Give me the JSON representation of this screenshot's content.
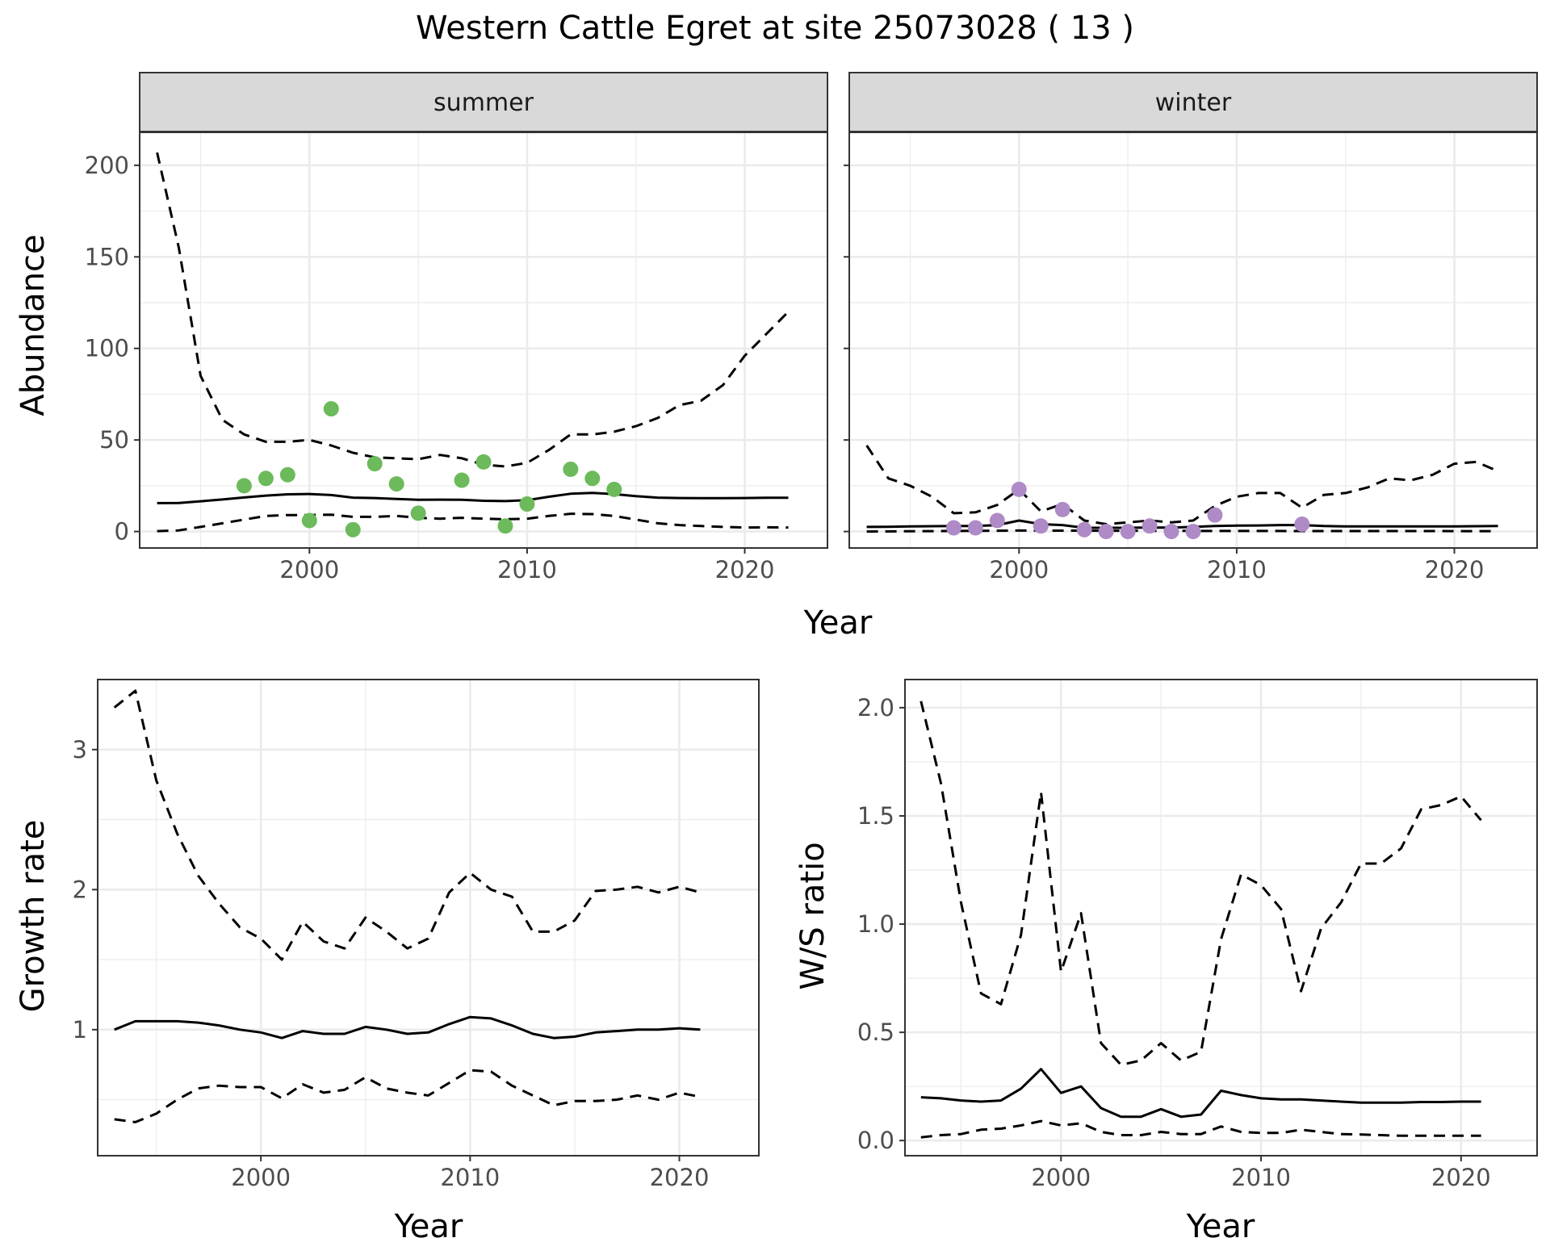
{
  "chart_data": [
    {
      "type": "line",
      "panel": "summer",
      "title": "Western Cattle Egret at site 25073028 ( 13 )",
      "xlabel": "Year",
      "ylabel": "Abundance",
      "strip_label": "summer",
      "xlim": [
        1992.2,
        2023.8
      ],
      "ylim": [
        -9,
        218
      ],
      "xticks": [
        2000,
        2010,
        2020
      ],
      "yticks": [
        0,
        50,
        100,
        150,
        200
      ],
      "grid": true,
      "series": [
        {
          "style": "solid",
          "x": [
            1993,
            1994,
            1995,
            1996,
            1997,
            1998,
            1999,
            2000,
            2001,
            2002,
            2003,
            2004,
            2005,
            2006,
            2007,
            2008,
            2009,
            2010,
            2011,
            2012,
            2013,
            2014,
            2015,
            2016,
            2017,
            2018,
            2019,
            2020,
            2021,
            2022
          ],
          "y": [
            15.5,
            15.6,
            16.5,
            17.5,
            18.6,
            19.6,
            20.3,
            20.5,
            19.9,
            18.5,
            18.3,
            17.8,
            17.3,
            17.4,
            17.3,
            16.8,
            16.6,
            17.1,
            19.0,
            20.6,
            21.1,
            20.4,
            19.3,
            18.5,
            18.3,
            18.2,
            18.2,
            18.3,
            18.4,
            18.4
          ]
        },
        {
          "style": "dashed",
          "x": [
            1993,
            1994,
            1995,
            1996,
            1997,
            1998,
            1999,
            2000,
            2001,
            2002,
            2003,
            2004,
            2005,
            2006,
            2007,
            2008,
            2009,
            2010,
            2011,
            2012,
            2013,
            2014,
            2015,
            2016,
            2017,
            2018,
            2019,
            2020,
            2021,
            2022
          ],
          "y": [
            207,
            155,
            85,
            61,
            53,
            49,
            49,
            50,
            47,
            43,
            40.5,
            40,
            39.5,
            41.8,
            40,
            36.5,
            35.5,
            37.5,
            44.5,
            53,
            53,
            54.5,
            57.5,
            62,
            69,
            71.5,
            80,
            96,
            108,
            120
          ]
        },
        {
          "style": "dashed",
          "x": [
            1993,
            1994,
            1995,
            1996,
            1997,
            1998,
            1999,
            2000,
            2001,
            2002,
            2003,
            2004,
            2005,
            2006,
            2007,
            2008,
            2009,
            2010,
            2011,
            2012,
            2013,
            2014,
            2015,
            2016,
            2017,
            2018,
            2019,
            2020,
            2021,
            2022
          ],
          "y": [
            0.2,
            0.6,
            2.5,
            4.5,
            6.5,
            8.5,
            9,
            9,
            9.2,
            8,
            8,
            8.5,
            7.5,
            7,
            7.5,
            7,
            6.7,
            7,
            8.5,
            9.7,
            9.5,
            8.5,
            6.5,
            4.5,
            3.5,
            3,
            2.5,
            2.2,
            2.3,
            2.2
          ]
        }
      ],
      "points": {
        "color": "#6cba5b",
        "x": [
          1997,
          1998,
          1999,
          2000,
          2001,
          2002,
          2003,
          2004,
          2005,
          2007,
          2008,
          2009,
          2010,
          2012,
          2013,
          2014
        ],
        "y": [
          25,
          29,
          31,
          6,
          67,
          1,
          37,
          26,
          10,
          28,
          38,
          3,
          15,
          34,
          29,
          23
        ]
      }
    },
    {
      "type": "line",
      "panel": "winter",
      "strip_label": "winter",
      "xlabel": "Year",
      "ylabel": "Abundance",
      "xlim": [
        1992.2,
        2023.8
      ],
      "ylim": [
        -9,
        218
      ],
      "xticks": [
        2000,
        2010,
        2020
      ],
      "yticks": [
        0,
        50,
        100,
        150,
        200
      ],
      "grid": true,
      "series": [
        {
          "style": "solid",
          "x": [
            1993,
            1994,
            1995,
            1996,
            1997,
            1998,
            1999,
            2000,
            2001,
            2002,
            2003,
            2004,
            2005,
            2006,
            2007,
            2008,
            2009,
            2010,
            2011,
            2012,
            2013,
            2014,
            2015,
            2016,
            2017,
            2018,
            2019,
            2020,
            2021,
            2022
          ],
          "y": [
            2.5,
            2.6,
            2.8,
            2.9,
            3,
            3,
            3.5,
            6,
            4,
            3.5,
            2,
            2,
            2,
            2.2,
            2.1,
            2.5,
            3,
            3.2,
            3.3,
            3.5,
            3.5,
            3,
            2.8,
            2.8,
            2.8,
            2.8,
            2.8,
            2.8,
            2.9,
            3
          ]
        },
        {
          "style": "dashed",
          "x": [
            1993,
            1994,
            1995,
            1996,
            1997,
            1998,
            1999,
            2000,
            2001,
            2002,
            2003,
            2004,
            2005,
            2006,
            2007,
            2008,
            2009,
            2010,
            2011,
            2012,
            2013,
            2014,
            2015,
            2016,
            2017,
            2018,
            2019,
            2020,
            2021,
            2022
          ],
          "y": [
            47,
            29,
            25,
            19,
            10,
            10.5,
            14.5,
            23,
            11,
            15,
            6,
            4,
            5,
            6,
            5,
            6,
            14,
            19,
            21,
            21,
            13,
            20,
            21,
            24,
            29,
            28,
            31,
            37,
            38,
            33
          ]
        },
        {
          "style": "dashed",
          "x": [
            1993,
            2000,
            2010,
            2022
          ],
          "y": [
            0,
            0.5,
            0.3,
            0.2
          ]
        }
      ],
      "points": {
        "color": "#ae8ac6",
        "x": [
          1997,
          1998,
          1999,
          2000,
          2001,
          2002,
          2003,
          2004,
          2005,
          2006,
          2007,
          2008,
          2009,
          2013
        ],
        "y": [
          2,
          2,
          6,
          23,
          3,
          12,
          1,
          0,
          0,
          3,
          0,
          0,
          9,
          4
        ]
      }
    },
    {
      "type": "line",
      "panel": "growth",
      "xlabel": "Year",
      "ylabel": "Growth rate",
      "xlim": [
        1992.2,
        2023.8
      ],
      "ylim": [
        0.1,
        3.5
      ],
      "xticks": [
        2000,
        2010,
        2020
      ],
      "yticks": [
        1,
        2,
        3
      ],
      "grid": true,
      "series": [
        {
          "style": "solid",
          "x": [
            1993,
            1994,
            1995,
            1996,
            1997,
            1998,
            1999,
            2000,
            2001,
            2002,
            2003,
            2004,
            2005,
            2006,
            2007,
            2008,
            2009,
            2010,
            2011,
            2012,
            2013,
            2014,
            2015,
            2016,
            2017,
            2018,
            2019,
            2020,
            2021
          ],
          "y": [
            1.0,
            1.06,
            1.06,
            1.06,
            1.05,
            1.03,
            1.0,
            0.98,
            0.94,
            0.99,
            0.97,
            0.97,
            1.02,
            1.0,
            0.97,
            0.98,
            1.04,
            1.09,
            1.08,
            1.03,
            0.97,
            0.94,
            0.95,
            0.98,
            0.99,
            1.0,
            1.0,
            1.01,
            1.0
          ]
        },
        {
          "style": "dashed",
          "x": [
            1993,
            1994,
            1995,
            1996,
            1997,
            1998,
            1999,
            2000,
            2001,
            2002,
            2003,
            2004,
            2005,
            2006,
            2007,
            2008,
            2009,
            2010,
            2011,
            2012,
            2013,
            2014,
            2015,
            2016,
            2017,
            2018,
            2019,
            2020,
            2021
          ],
          "y": [
            3.3,
            3.42,
            2.78,
            2.4,
            2.1,
            1.9,
            1.73,
            1.65,
            1.5,
            1.77,
            1.63,
            1.58,
            1.8,
            1.7,
            1.58,
            1.65,
            1.98,
            2.12,
            2.0,
            1.95,
            1.7,
            1.7,
            1.78,
            1.99,
            2.0,
            2.02,
            1.98,
            2.02,
            1.98
          ]
        },
        {
          "style": "dashed",
          "x": [
            1993,
            1994,
            1995,
            1996,
            1997,
            1998,
            1999,
            2000,
            2001,
            2002,
            2003,
            2004,
            2005,
            2006,
            2007,
            2008,
            2009,
            2010,
            2011,
            2012,
            2013,
            2014,
            2015,
            2016,
            2017,
            2018,
            2019,
            2020,
            2021
          ],
          "y": [
            0.36,
            0.34,
            0.4,
            0.5,
            0.58,
            0.6,
            0.59,
            0.59,
            0.51,
            0.61,
            0.55,
            0.57,
            0.66,
            0.58,
            0.55,
            0.53,
            0.62,
            0.71,
            0.7,
            0.6,
            0.53,
            0.46,
            0.49,
            0.49,
            0.5,
            0.53,
            0.5,
            0.55,
            0.52
          ]
        }
      ]
    },
    {
      "type": "line",
      "panel": "ratio",
      "xlabel": "Year",
      "ylabel": "W/S ratio",
      "xlim": [
        1992.2,
        2023.8
      ],
      "ylim": [
        -0.07,
        2.13
      ],
      "xticks": [
        2000,
        2010,
        2020
      ],
      "yticks": [
        "0.0",
        "0.5",
        "1.0",
        "1.5",
        "2.0"
      ],
      "grid": true,
      "series": [
        {
          "style": "solid",
          "x": [
            1993,
            1994,
            1995,
            1996,
            1997,
            1998,
            1999,
            2000,
            2001,
            2002,
            2003,
            2004,
            2005,
            2006,
            2007,
            2008,
            2009,
            2010,
            2011,
            2012,
            2013,
            2014,
            2015,
            2016,
            2017,
            2018,
            2019,
            2020,
            2021
          ],
          "y": [
            0.2,
            0.195,
            0.185,
            0.18,
            0.185,
            0.24,
            0.33,
            0.22,
            0.25,
            0.15,
            0.11,
            0.11,
            0.145,
            0.11,
            0.12,
            0.23,
            0.21,
            0.195,
            0.19,
            0.19,
            0.185,
            0.18,
            0.175,
            0.175,
            0.175,
            0.178,
            0.178,
            0.18,
            0.18
          ]
        },
        {
          "style": "dashed",
          "x": [
            1993,
            1994,
            1995,
            1996,
            1997,
            1998,
            1999,
            2000,
            2001,
            2002,
            2003,
            2004,
            2005,
            2006,
            2007,
            2008,
            2009,
            2010,
            2011,
            2012,
            2013,
            2014,
            2015,
            2016,
            2017,
            2018,
            2019,
            2020,
            2021
          ],
          "y": [
            2.03,
            1.65,
            1.1,
            0.68,
            0.63,
            0.95,
            1.61,
            0.78,
            1.05,
            0.45,
            0.35,
            0.37,
            0.45,
            0.37,
            0.41,
            0.93,
            1.23,
            1.18,
            1.07,
            0.69,
            0.98,
            1.1,
            1.28,
            1.28,
            1.35,
            1.53,
            1.55,
            1.59,
            1.48
          ]
        },
        {
          "style": "dashed",
          "x": [
            1993,
            1994,
            1995,
            1996,
            1997,
            1998,
            1999,
            2000,
            2001,
            2002,
            2003,
            2004,
            2005,
            2006,
            2007,
            2008,
            2009,
            2010,
            2011,
            2012,
            2013,
            2014,
            2015,
            2016,
            2017,
            2018,
            2019,
            2020,
            2021
          ],
          "y": [
            0.015,
            0.025,
            0.03,
            0.05,
            0.055,
            0.07,
            0.09,
            0.07,
            0.08,
            0.04,
            0.025,
            0.025,
            0.04,
            0.03,
            0.03,
            0.065,
            0.04,
            0.035,
            0.035,
            0.05,
            0.04,
            0.03,
            0.028,
            0.025,
            0.022,
            0.022,
            0.022,
            0.022,
            0.022
          ]
        }
      ]
    }
  ]
}
